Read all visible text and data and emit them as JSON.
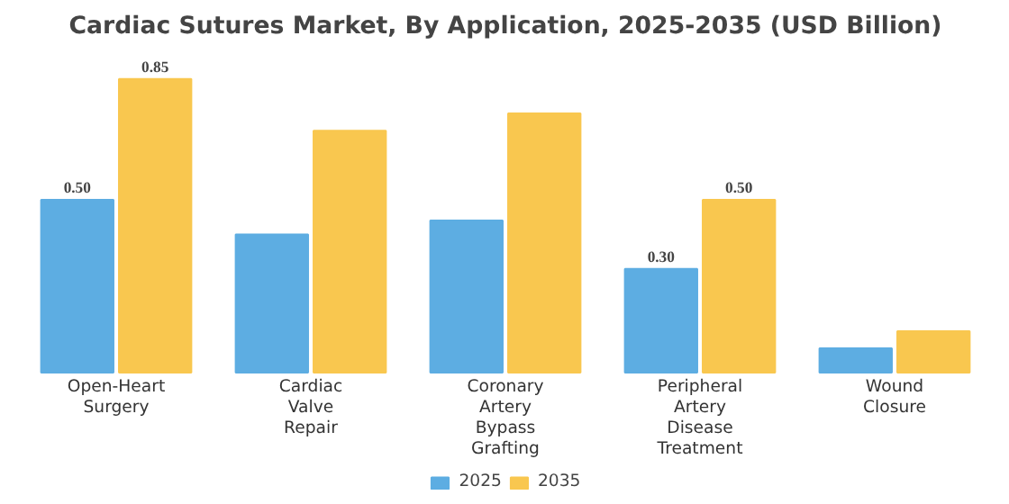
{
  "chart_data": {
    "type": "bar",
    "title": "Cardiac Sutures Market, By Application, 2025-2035 (USD Billion)",
    "categories": [
      "Open-Heart Surgery",
      "Cardiac Valve Repair",
      "Coronary Artery Bypass Grafting",
      "Peripheral Artery Disease Treatment",
      "Wound Closure"
    ],
    "series": [
      {
        "name": "2025",
        "color": "#5dade2",
        "values": [
          0.5,
          0.4,
          0.44,
          0.3,
          0.07
        ],
        "value_labels": [
          "0.50",
          null,
          null,
          "0.30",
          null
        ]
      },
      {
        "name": "2035",
        "color": "#f9c74f",
        "values": [
          0.85,
          0.7,
          0.75,
          0.5,
          0.12
        ],
        "value_labels": [
          "0.85",
          null,
          null,
          "0.50",
          null
        ]
      }
    ],
    "legend": "bottom"
  }
}
